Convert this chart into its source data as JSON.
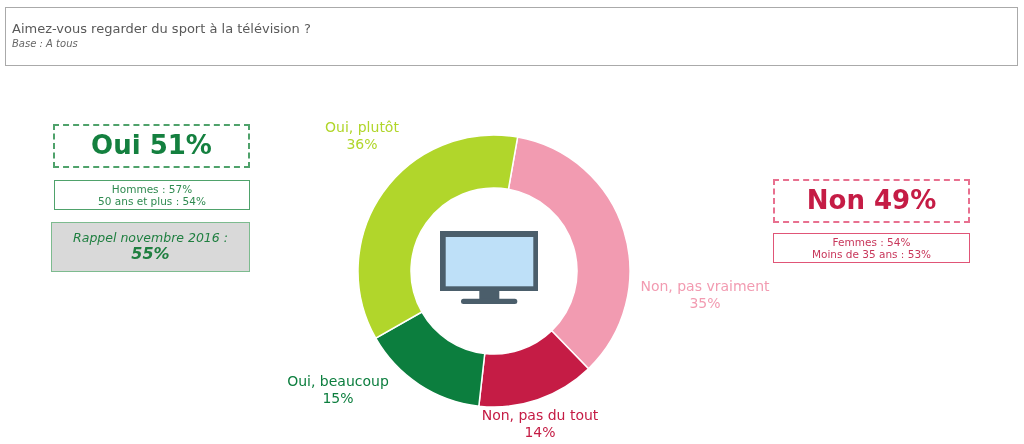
{
  "chart_data": {
    "type": "donut",
    "title": "Aimez-vous regarder du sport à la télévision ?",
    "subtitle": "Base : A tous",
    "categories": [
      "Non, pas vraiment",
      "Non, pas du tout",
      "Oui, beaucoup",
      "Oui, plutôt"
    ],
    "values": [
      35,
      14,
      15,
      36
    ],
    "colors": [
      "#f29bb1",
      "#c51c45",
      "#0c7e3e",
      "#b1d62b"
    ],
    "value_labels": [
      "35%",
      "14%",
      "15%",
      "36%"
    ],
    "annotations": [
      "Oui 51%",
      "Hommes : 57%",
      "50 ans et plus : 54%",
      "Rappel novembre 2016 :",
      "55%",
      "Non 49%",
      "Femmes : 54%",
      "Moins de 35 ans : 53%"
    ]
  }
}
